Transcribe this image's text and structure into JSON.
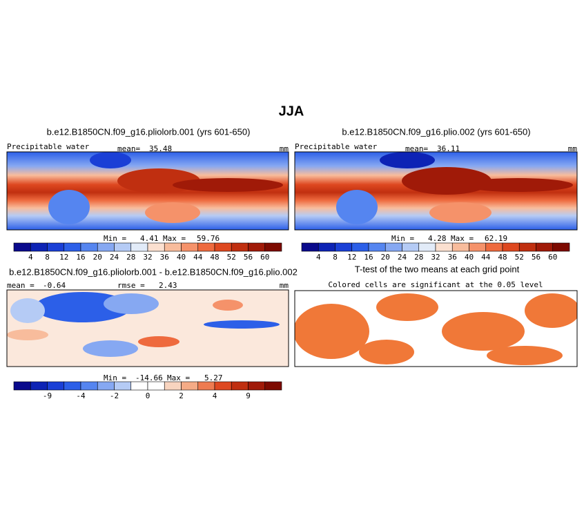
{
  "title": "JJA",
  "panels": [
    {
      "title": "b.e12.B1850CN.f09_g16.pliolorb.001 (yrs 601-650)",
      "variable": "Precipitable water",
      "stat_label": "mean=",
      "stat_value": 35.48,
      "units": "mm",
      "min_label": "Min =",
      "min": 4.41,
      "max_label": "Max =",
      "max": 59.76,
      "colorbar": {
        "colors": [
          "#0a0a8c",
          "#0d23b5",
          "#1a3fd6",
          "#2c5fe8",
          "#5585f0",
          "#86a8f2",
          "#b5cbf5",
          "#e2ebf8",
          "#fbe0d0",
          "#f8bc9c",
          "#f5926a",
          "#ee6a3e",
          "#de4820",
          "#c02f10",
          "#a01a08",
          "#7d0a00"
        ],
        "labels": [
          4,
          8,
          12,
          16,
          20,
          24,
          28,
          32,
          36,
          40,
          44,
          48,
          52,
          56,
          60
        ]
      }
    },
    {
      "title": "b.e12.B1850CN.f09_g16.plio.002 (yrs 601-650)",
      "variable": "Precipitable water",
      "stat_label": "mean=",
      "stat_value": 36.11,
      "units": "mm",
      "min_label": "Min =",
      "min": 4.28,
      "max_label": "Max =",
      "max": 62.19,
      "colorbar": {
        "colors": [
          "#0a0a8c",
          "#0d23b5",
          "#1a3fd6",
          "#2c5fe8",
          "#5585f0",
          "#86a8f2",
          "#b5cbf5",
          "#e2ebf8",
          "#fbe0d0",
          "#f8bc9c",
          "#f5926a",
          "#ee6a3e",
          "#de4820",
          "#c02f10",
          "#a01a08",
          "#7d0a00"
        ],
        "labels": [
          4,
          8,
          12,
          16,
          20,
          24,
          28,
          32,
          36,
          40,
          44,
          48,
          52,
          56,
          60
        ]
      }
    },
    {
      "title": "b.e12.B1850CN.f09_g16.pliolorb.001 - b.e12.B1850CN.f09_g16.plio.002",
      "stat_label": "mean =",
      "stat_value": -0.64,
      "rmse_label": "rmse =",
      "rmse_value": 2.43,
      "units": "mm",
      "min_label": "Min =",
      "min": -14.66,
      "max_label": "Max =",
      "max": 5.27,
      "colorbar": {
        "colors": [
          "#0a0a8c",
          "#0d23b5",
          "#1a3fd6",
          "#2c5fe8",
          "#5585f0",
          "#86a8f2",
          "#b5cbf5",
          "#ffffff",
          "#ffffff",
          "#f8d4bf",
          "#f5ab86",
          "#ee7b50",
          "#de4820",
          "#c02f10",
          "#a01a08",
          "#7d0a00"
        ],
        "labels": [
          null,
          -9,
          null,
          -4,
          null,
          -2,
          null,
          0,
          null,
          2,
          null,
          4,
          null,
          9,
          null
        ]
      }
    },
    {
      "title": "T-test of the two means at each grid point",
      "subtitle": "Colored cells are significant at the 0.05 level"
    }
  ]
}
